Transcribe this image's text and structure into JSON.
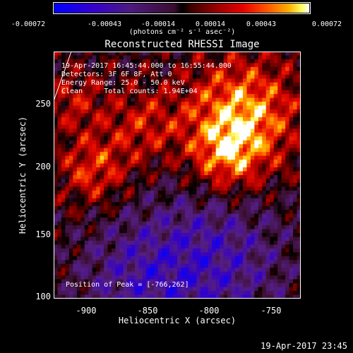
{
  "colorbar": {
    "ticks": [
      "-0.00072",
      "-0.00043",
      "-0.00014",
      "0.00014",
      "0.00043",
      "0.00072"
    ],
    "tick_values": [
      -0.00072,
      -0.00043,
      -0.00014,
      0.00014,
      0.00043,
      0.00072
    ],
    "range": [
      -0.00072,
      0.00072
    ],
    "label": "(photons cm⁻² s⁻¹ asec⁻²)"
  },
  "title": "Reconstructed RHESSI Image",
  "info": {
    "time_range": "19-Apr-2017 16:45:44.000 to 16:55:44.000",
    "detectors": "Detectors: 3F 6F 8F, Att 0",
    "energy": "Energy Range: 25.0 - 50.0 keV",
    "clean": "Clean     Total counts: 1.94E+04",
    "peak": "Position of Peak = [-766,262]"
  },
  "chart_data": {
    "type": "heatmap",
    "title": "Reconstructed RHESSI Image",
    "xlabel": "Heliocentric X (arcsec)",
    "ylabel": "Heliocentric Y (arcsec)",
    "xlim": [
      -928,
      -728
    ],
    "ylim": [
      98,
      298
    ],
    "x_ticks": [
      "-900",
      "-850",
      "-800",
      "-750"
    ],
    "x_tick_values": [
      -900,
      -850,
      -800,
      -750
    ],
    "y_ticks": [
      "100",
      "150",
      "200",
      "250"
    ],
    "y_tick_values": [
      100,
      150,
      200,
      250
    ],
    "peak": [
      -766,
      262
    ],
    "colormap": "blue-purple-black-red-yellow-white",
    "grid": false
  },
  "timestamp": "19-Apr-2017 23:45"
}
